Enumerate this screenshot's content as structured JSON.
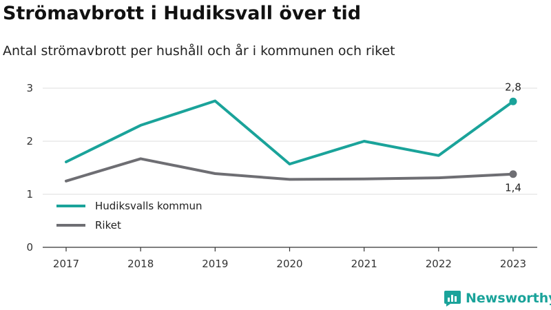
{
  "chart_data": {
    "type": "line",
    "title": "Strömavbrott i Hudiksvall över tid",
    "subtitle": "Antal strömavbrott per hushåll och år i kommunen och riket",
    "x": [
      "2017",
      "2018",
      "2019",
      "2020",
      "2021",
      "2022",
      "2023"
    ],
    "yticks": [
      "0",
      "1",
      "2",
      "3"
    ],
    "ylim": [
      0,
      3
    ],
    "grid": true,
    "legend_placement": "bottom-left",
    "series": [
      {
        "name": "Hudiksvalls kommun",
        "color": "#1aa39a",
        "values": [
          1.61,
          2.3,
          2.76,
          1.57,
          2.0,
          1.73,
          2.75
        ],
        "end_label": "2,8"
      },
      {
        "name": "Riket",
        "color": "#6e6e73",
        "values": [
          1.25,
          1.67,
          1.39,
          1.28,
          1.29,
          1.31,
          1.38
        ],
        "end_label": "1,4"
      }
    ]
  },
  "branding": {
    "name": "Newsworthy",
    "icon": "bar-chart-icon",
    "color": "#1aa39a"
  }
}
